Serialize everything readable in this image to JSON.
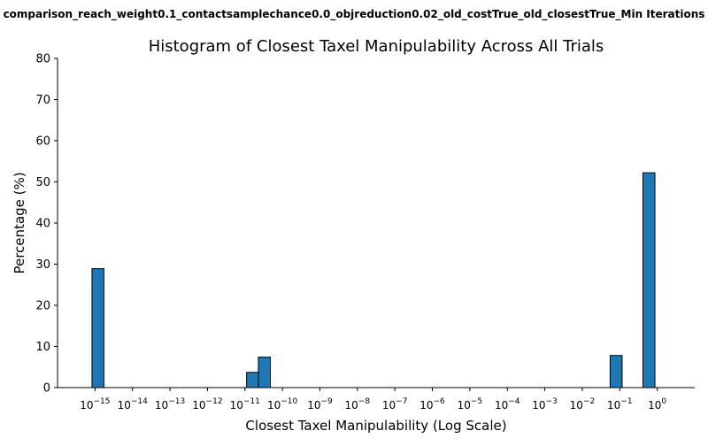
{
  "chart_data": {
    "type": "bar",
    "suptitle": "comparison_reach_weight0.1_contactsamplechance0.0_objreduction0.02_old_costTrue_old_closestTrue_Min Iterations",
    "title": "Histogram of Closest Taxel Manipulability Across All Trials",
    "xlabel": "Closest Taxel Manipulability (Log Scale)",
    "ylabel": "Percentage (%)",
    "x_scale": "log",
    "xlim": [
      1e-16,
      10.0
    ],
    "ylim": [
      0,
      80
    ],
    "y_ticks": [
      0,
      10,
      20,
      30,
      40,
      50,
      60,
      70,
      80
    ],
    "x_tick_exponents": [
      "−15",
      "−14",
      "−13",
      "−12",
      "−11",
      "−10",
      "−9",
      "−8",
      "−7",
      "−6",
      "−5",
      "−4",
      "−3",
      "−2",
      "−1",
      "0"
    ],
    "x_tick_values": [
      -15,
      -14,
      -13,
      -12,
      -11,
      -10,
      -9,
      -8,
      -7,
      -6,
      -5,
      -4,
      -3,
      -2,
      -1,
      0
    ],
    "bin_log_width": 0.32,
    "bars": [
      {
        "x": 1.2e-15,
        "value": 28.9
      },
      {
        "x": 1.6e-11,
        "value": 3.7
      },
      {
        "x": 3.3e-11,
        "value": 7.4
      },
      {
        "x": 0.08,
        "value": 7.8
      },
      {
        "x": 0.6,
        "value": 52.2
      }
    ],
    "bar_color": "#1f77b4",
    "bar_edge_color": "#000000",
    "grid": false,
    "legend": false
  }
}
